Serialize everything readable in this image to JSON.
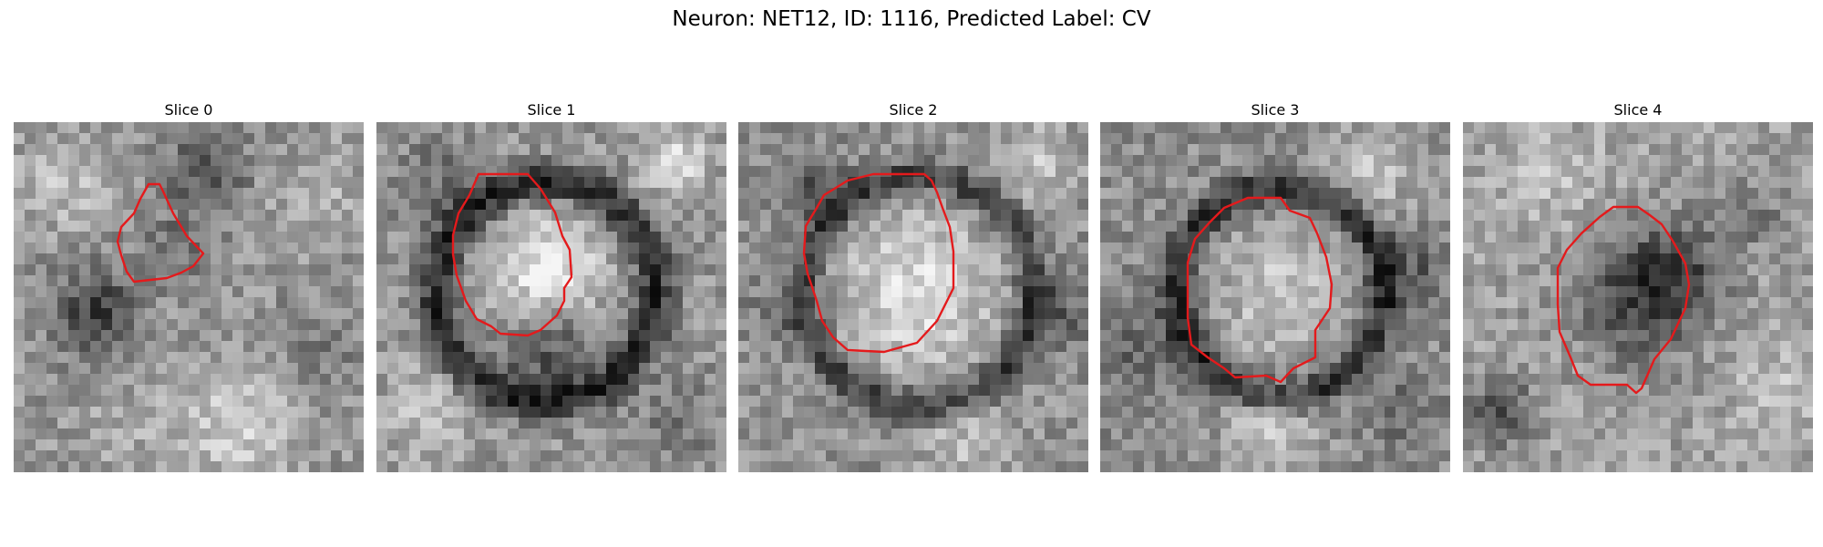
{
  "figure": {
    "title": "Neuron: NET12, ID: 1116, Predicted Label: CV"
  },
  "panels": [
    {
      "title": "Slice 0"
    },
    {
      "title": "Slice 1"
    },
    {
      "title": "Slice 2"
    },
    {
      "title": "Slice 3"
    },
    {
      "title": "Slice 4"
    }
  ],
  "colors": {
    "contour": "#e41a1c",
    "background": "#ffffff"
  }
}
